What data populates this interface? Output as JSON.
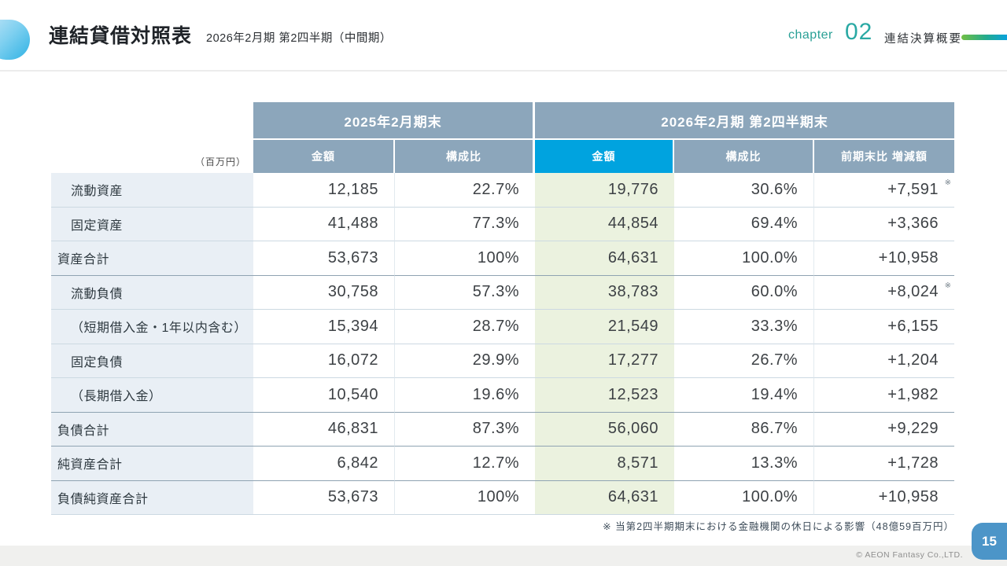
{
  "header": {
    "title": "連結貸借対照表",
    "subtitle": "2026年2月期 第2四半期（中間期）",
    "chapter_label": "chapter",
    "chapter_number": "02",
    "chapter_title": "連結決算概要"
  },
  "table": {
    "unit_label": "（百万円）",
    "column_groups": [
      {
        "label": "2025年2月期末",
        "columns": [
          "金額",
          "構成比"
        ]
      },
      {
        "label": "2026年2月期 第2四半期末",
        "columns": [
          "金額",
          "構成比",
          "前期末比 増減額"
        ]
      }
    ],
    "note_mark": "※",
    "rows": [
      {
        "label": "流動資産",
        "indent": true,
        "total": false,
        "a2025": "12,185",
        "r2025": "22.7%",
        "a2026": "19,776",
        "r2026": "30.6%",
        "change": "+7,591",
        "note": true,
        "divider_below": "light"
      },
      {
        "label": "固定資産",
        "indent": true,
        "total": false,
        "a2025": "41,488",
        "r2025": "77.3%",
        "a2026": "44,854",
        "r2026": "69.4%",
        "change": "+3,366",
        "note": false,
        "divider_below": "light"
      },
      {
        "label": "資産合計",
        "indent": false,
        "total": true,
        "a2025": "53,673",
        "r2025": "100%",
        "a2026": "64,631",
        "r2026": "100.0%",
        "change": "+10,958",
        "note": false,
        "divider_below": "dark"
      },
      {
        "label": "流動負債",
        "indent": true,
        "total": false,
        "a2025": "30,758",
        "r2025": "57.3%",
        "a2026": "38,783",
        "r2026": "60.0%",
        "change": "+8,024",
        "note": true,
        "divider_below": "light"
      },
      {
        "label": "（短期借入金・1年以内含む）",
        "indent": true,
        "total": false,
        "a2025": "15,394",
        "r2025": "28.7%",
        "a2026": "21,549",
        "r2026": "33.3%",
        "change": "+6,155",
        "note": false,
        "divider_below": "light"
      },
      {
        "label": "固定負債",
        "indent": true,
        "total": false,
        "a2025": "16,072",
        "r2025": "29.9%",
        "a2026": "17,277",
        "r2026": "26.7%",
        "change": "+1,204",
        "note": false,
        "divider_below": "light"
      },
      {
        "label": "（長期借入金）",
        "indent": true,
        "total": false,
        "a2025": "10,540",
        "r2025": "19.6%",
        "a2026": "12,523",
        "r2026": "19.4%",
        "change": "+1,982",
        "note": false,
        "divider_below": "dark"
      },
      {
        "label": "負債合計",
        "indent": false,
        "total": true,
        "a2025": "46,831",
        "r2025": "87.3%",
        "a2026": "56,060",
        "r2026": "86.7%",
        "change": "+9,229",
        "note": false,
        "divider_below": "dark"
      },
      {
        "label": "純資産合計",
        "indent": false,
        "total": true,
        "a2025": "6,842",
        "r2025": "12.7%",
        "a2026": "8,571",
        "r2026": "13.3%",
        "change": "+1,728",
        "note": false,
        "divider_below": "dark"
      },
      {
        "label": "負債純資産合計",
        "indent": false,
        "total": true,
        "a2025": "53,673",
        "r2025": "100%",
        "a2026": "64,631",
        "r2026": "100.0%",
        "change": "+10,958",
        "note": false,
        "divider_below": "light"
      }
    ]
  },
  "footnote": "※ 当第2四半期期末における金融機関の休日による影響（48億59百万円）",
  "footer": {
    "copyright": "© AEON Fantasy Co.,LTD.",
    "page_number": "15"
  },
  "colors": {
    "header_cell": "#8ca6bb",
    "highlight_cell": "#00a3df",
    "label_column": "#e9eff5",
    "highlight_column": "#ebf2df",
    "chapter_accent": "#2aa096",
    "page_badge": "#4c95c8",
    "accent_line_gradient": [
      "#72bf44",
      "#0aa2dc"
    ]
  }
}
